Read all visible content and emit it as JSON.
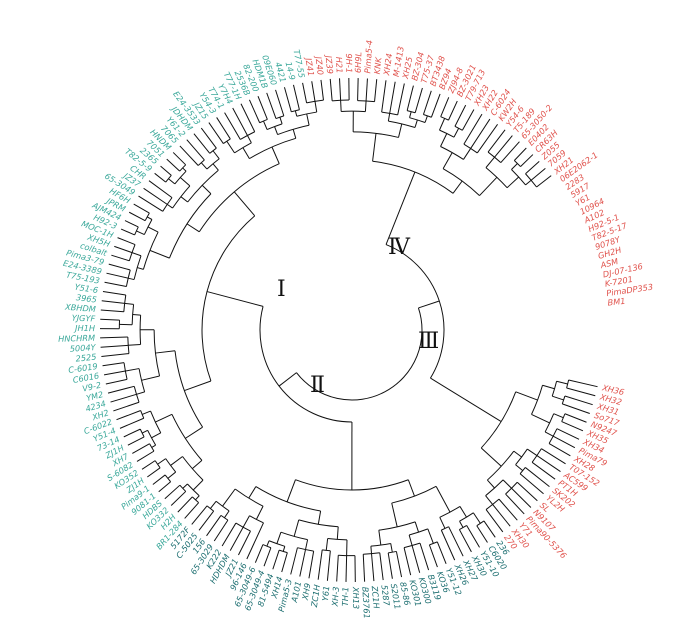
{
  "group_labels": [
    "Ⅰ",
    "Ⅱ",
    "Ⅲ",
    "Ⅳ"
  ],
  "colors": {
    "teal": "#3aa89a",
    "dark_teal": "#1c6e70",
    "red": "#e0524c",
    "branch": "#111111"
  },
  "leaves": [
    {
      "name": "XH36",
      "color": "red"
    },
    {
      "name": "XH32",
      "color": "red"
    },
    {
      "name": "XH31",
      "color": "red"
    },
    {
      "name": "So717",
      "color": "red"
    },
    {
      "name": "N9247",
      "color": "red"
    },
    {
      "name": "XH35",
      "color": "red"
    },
    {
      "name": "XH34",
      "color": "red"
    },
    {
      "name": "Pima79",
      "color": "red"
    },
    {
      "name": "XH28",
      "color": "red"
    },
    {
      "name": "T07-152",
      "color": "red"
    },
    {
      "name": "AC599",
      "color": "red"
    },
    {
      "name": "PT1H",
      "color": "red"
    },
    {
      "name": "SK202",
      "color": "red"
    },
    {
      "name": "YL2H",
      "color": "red"
    },
    {
      "name": "SL",
      "color": "red"
    },
    {
      "name": "N9107",
      "color": "red"
    },
    {
      "name": "Pima90-5376",
      "color": "red"
    },
    {
      "name": "Y71",
      "color": "red"
    },
    {
      "name": "XH30",
      "color": "red"
    },
    {
      "name": "270",
      "color": "red"
    },
    {
      "name": "236",
      "color": "dark_teal"
    },
    {
      "name": "C6020",
      "color": "dark_teal"
    },
    {
      "name": "Y51-10",
      "color": "dark_teal"
    },
    {
      "name": "XH30",
      "color": "dark_teal"
    },
    {
      "name": "XH27",
      "color": "dark_teal"
    },
    {
      "name": "XH26",
      "color": "dark_teal"
    },
    {
      "name": "Y51-12",
      "color": "dark_teal"
    },
    {
      "name": "KO36",
      "color": "dark_teal"
    },
    {
      "name": "B3119",
      "color": "dark_teal"
    },
    {
      "name": "KO300",
      "color": "dark_teal"
    },
    {
      "name": "KO301",
      "color": "dark_teal"
    },
    {
      "name": "85-86",
      "color": "dark_teal"
    },
    {
      "name": "S2011",
      "color": "dark_teal"
    },
    {
      "name": "5287",
      "color": "dark_teal"
    },
    {
      "name": "ZC1H",
      "color": "dark_teal"
    },
    {
      "name": "BZ3761",
      "color": "dark_teal"
    },
    {
      "name": "XH13",
      "color": "dark_teal"
    },
    {
      "name": "TH-1",
      "color": "dark_teal"
    },
    {
      "name": "XH-3",
      "color": "dark_teal"
    },
    {
      "name": "Y61",
      "color": "dark_teal"
    },
    {
      "name": "ZC1H",
      "color": "dark_teal"
    },
    {
      "name": "XH9",
      "color": "dark_teal"
    },
    {
      "name": "A101",
      "color": "dark_teal"
    },
    {
      "name": "Pima5-3",
      "color": "dark_teal"
    },
    {
      "name": "XH14",
      "color": "dark_teal"
    },
    {
      "name": "81-5494",
      "color": "dark_teal"
    },
    {
      "name": "65-3049-4",
      "color": "dark_teal"
    },
    {
      "name": "65-3049-6",
      "color": "dark_teal"
    },
    {
      "name": "96-146",
      "color": "dark_teal"
    },
    {
      "name": "JZ21",
      "color": "dark_teal"
    },
    {
      "name": "HDHDM",
      "color": "dark_teal"
    },
    {
      "name": "K222",
      "color": "dark_teal"
    },
    {
      "name": "65-3029",
      "color": "dark_teal"
    },
    {
      "name": "156",
      "color": "dark_teal"
    },
    {
      "name": "C-5025",
      "color": "dark_teal"
    },
    {
      "name": "5172F",
      "color": "dark_teal"
    },
    {
      "name": "BR1-284",
      "color": "teal"
    },
    {
      "name": "H2H",
      "color": "teal"
    },
    {
      "name": "KO332",
      "color": "teal"
    },
    {
      "name": "HDBS",
      "color": "teal"
    },
    {
      "name": "9081-1",
      "color": "teal"
    },
    {
      "name": "Pima9-1",
      "color": "teal"
    },
    {
      "name": "ZJ1H",
      "color": "teal"
    },
    {
      "name": "KO352",
      "color": "teal"
    },
    {
      "name": "S-6082",
      "color": "teal"
    },
    {
      "name": "XH7",
      "color": "teal"
    },
    {
      "name": "ZJ1H",
      "color": "teal"
    },
    {
      "name": "73-14",
      "color": "teal"
    },
    {
      "name": "Y51-4",
      "color": "teal"
    },
    {
      "name": "C-6022",
      "color": "teal"
    },
    {
      "name": "XH2",
      "color": "teal"
    },
    {
      "name": "4234",
      "color": "teal"
    },
    {
      "name": "YM2",
      "color": "teal"
    },
    {
      "name": "V9-2",
      "color": "teal"
    },
    {
      "name": "C6016",
      "color": "teal"
    },
    {
      "name": "C-6019",
      "color": "teal"
    },
    {
      "name": "2525",
      "color": "teal"
    },
    {
      "name": "5004Y",
      "color": "teal"
    },
    {
      "name": "HNCHRM",
      "color": "teal"
    },
    {
      "name": "JH1H",
      "color": "teal"
    },
    {
      "name": "YJGYF",
      "color": "teal"
    },
    {
      "name": "XBHDM",
      "color": "teal"
    },
    {
      "name": "3965",
      "color": "teal"
    },
    {
      "name": "Y51-6",
      "color": "teal"
    },
    {
      "name": "T75-193",
      "color": "teal"
    },
    {
      "name": "E24-3389",
      "color": "teal"
    },
    {
      "name": "Pima3-79",
      "color": "teal"
    },
    {
      "name": "colbalt",
      "color": "teal"
    },
    {
      "name": "XH5H",
      "color": "teal"
    },
    {
      "name": "MOC-1H",
      "color": "teal"
    },
    {
      "name": "H92-3",
      "color": "teal"
    },
    {
      "name": "AJM424",
      "color": "teal"
    },
    {
      "name": "JPRM",
      "color": "teal"
    },
    {
      "name": "HF6H",
      "color": "teal"
    },
    {
      "name": "65-3049",
      "color": "teal"
    },
    {
      "name": "JZ37",
      "color": "teal"
    },
    {
      "name": "CHR",
      "color": "teal"
    },
    {
      "name": "T82-5-9",
      "color": "teal"
    },
    {
      "name": "2365",
      "color": "teal"
    },
    {
      "name": "7051",
      "color": "teal"
    },
    {
      "name": "HNDM",
      "color": "teal"
    },
    {
      "name": "7065",
      "color": "teal"
    },
    {
      "name": "Y61-2",
      "color": "teal"
    },
    {
      "name": "JDHDM",
      "color": "teal"
    },
    {
      "name": "E24-3533",
      "color": "teal"
    },
    {
      "name": "JZ15",
      "color": "teal"
    },
    {
      "name": "Y54-3",
      "color": "teal"
    },
    {
      "name": "T74-1",
      "color": "teal"
    },
    {
      "name": "Y7H4",
      "color": "teal"
    },
    {
      "name": "T77-1H",
      "color": "teal"
    },
    {
      "name": "2536B",
      "color": "teal"
    },
    {
      "name": "82-200",
      "color": "teal"
    },
    {
      "name": "HDM1B",
      "color": "teal"
    },
    {
      "name": "09E060",
      "color": "teal"
    },
    {
      "name": "4421",
      "color": "teal"
    },
    {
      "name": "14-9",
      "color": "teal"
    },
    {
      "name": "T77-55",
      "color": "teal"
    },
    {
      "name": "JZ41",
      "color": "red"
    },
    {
      "name": "JZ40",
      "color": "red"
    },
    {
      "name": "JZ39",
      "color": "red"
    },
    {
      "name": "H21",
      "color": "red"
    },
    {
      "name": "9H-1",
      "color": "red"
    },
    {
      "name": "6H9L",
      "color": "red"
    },
    {
      "name": "Pima5-4",
      "color": "red"
    },
    {
      "name": "KNK",
      "color": "red"
    },
    {
      "name": "XH24",
      "color": "red"
    },
    {
      "name": "M-1413",
      "color": "red"
    },
    {
      "name": "XH25",
      "color": "red"
    },
    {
      "name": "BZ-304",
      "color": "red"
    },
    {
      "name": "T75-37",
      "color": "red"
    },
    {
      "name": "BT3438",
      "color": "red"
    },
    {
      "name": "BZ94",
      "color": "red"
    },
    {
      "name": "ZJ94-8",
      "color": "red"
    },
    {
      "name": "BZ-3021",
      "color": "red"
    },
    {
      "name": "T79-713",
      "color": "red"
    },
    {
      "name": "XH23",
      "color": "red"
    },
    {
      "name": "XH22",
      "color": "red"
    },
    {
      "name": "C-6024",
      "color": "red"
    },
    {
      "name": "KW2H",
      "color": "red"
    },
    {
      "name": "Y54-6",
      "color": "red"
    },
    {
      "name": "T5-189",
      "color": "red"
    },
    {
      "name": "65-3050-2",
      "color": "red"
    },
    {
      "name": "E0402",
      "color": "red"
    },
    {
      "name": "CR63H",
      "color": "red"
    },
    {
      "name": "Z055",
      "color": "red"
    },
    {
      "name": "7059",
      "color": "red"
    },
    {
      "name": "XH21",
      "color": "red"
    },
    {
      "name": "06E2062-1",
      "color": "red"
    },
    {
      "name": "2283",
      "color": "red"
    },
    {
      "name": "5917",
      "color": "red"
    },
    {
      "name": "Y61",
      "color": "red"
    },
    {
      "name": "10964",
      "color": "red"
    },
    {
      "name": "A102",
      "color": "red"
    },
    {
      "name": "H92-5-1",
      "color": "red"
    },
    {
      "name": "T82-5-17",
      "color": "red"
    },
    {
      "name": "9078Y",
      "color": "red"
    },
    {
      "name": "GH2H",
      "color": "red"
    },
    {
      "name": "ASM",
      "color": "red"
    },
    {
      "name": "DJ-07-136",
      "color": "red"
    },
    {
      "name": "K-7201",
      "color": "red"
    },
    {
      "name": "PimaDP353",
      "color": "red"
    },
    {
      "name": "BM1",
      "color": "red"
    }
  ]
}
